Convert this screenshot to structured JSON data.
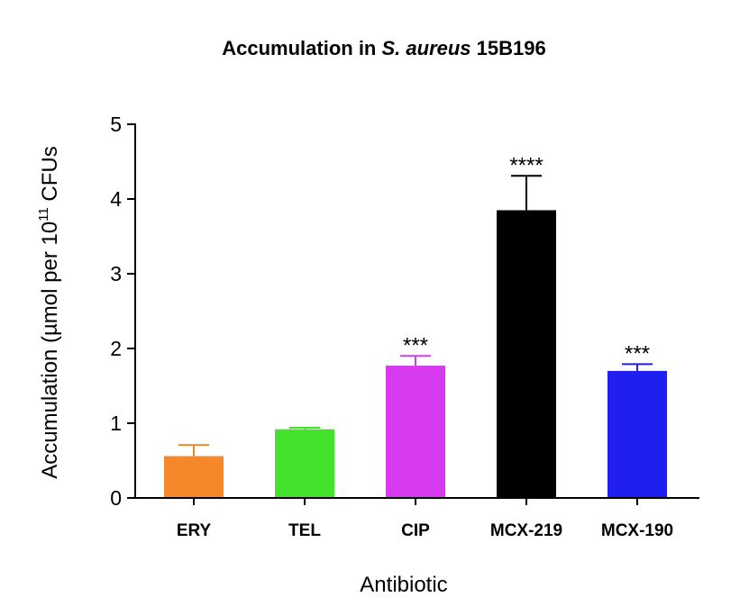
{
  "chart_data": {
    "type": "bar",
    "title": {
      "prefix": "Accumulation in ",
      "italic": "S. aureus",
      "suffix": " 15B196"
    },
    "xlabel": "Antibiotic",
    "ylabel": {
      "main": "Accumulation (µmol per 10",
      "superscript": "11",
      "suffix": " CFUs"
    },
    "ylim": [
      0,
      5
    ],
    "yticks": [
      0,
      1,
      2,
      3,
      4,
      5
    ],
    "grid": false,
    "legend": "none",
    "categories": [
      "ERY",
      "TEL",
      "CIP",
      "MCX-219",
      "MCX-190"
    ],
    "values": [
      0.56,
      0.92,
      1.77,
      3.85,
      1.7
    ],
    "errors": [
      0.15,
      0.02,
      0.13,
      0.46,
      0.09
    ],
    "significance": [
      "",
      "",
      "***",
      "****",
      "***"
    ],
    "colors": [
      "#F5892A",
      "#44E22C",
      "#D63BF0",
      "#000000",
      "#1F1FF2"
    ]
  }
}
